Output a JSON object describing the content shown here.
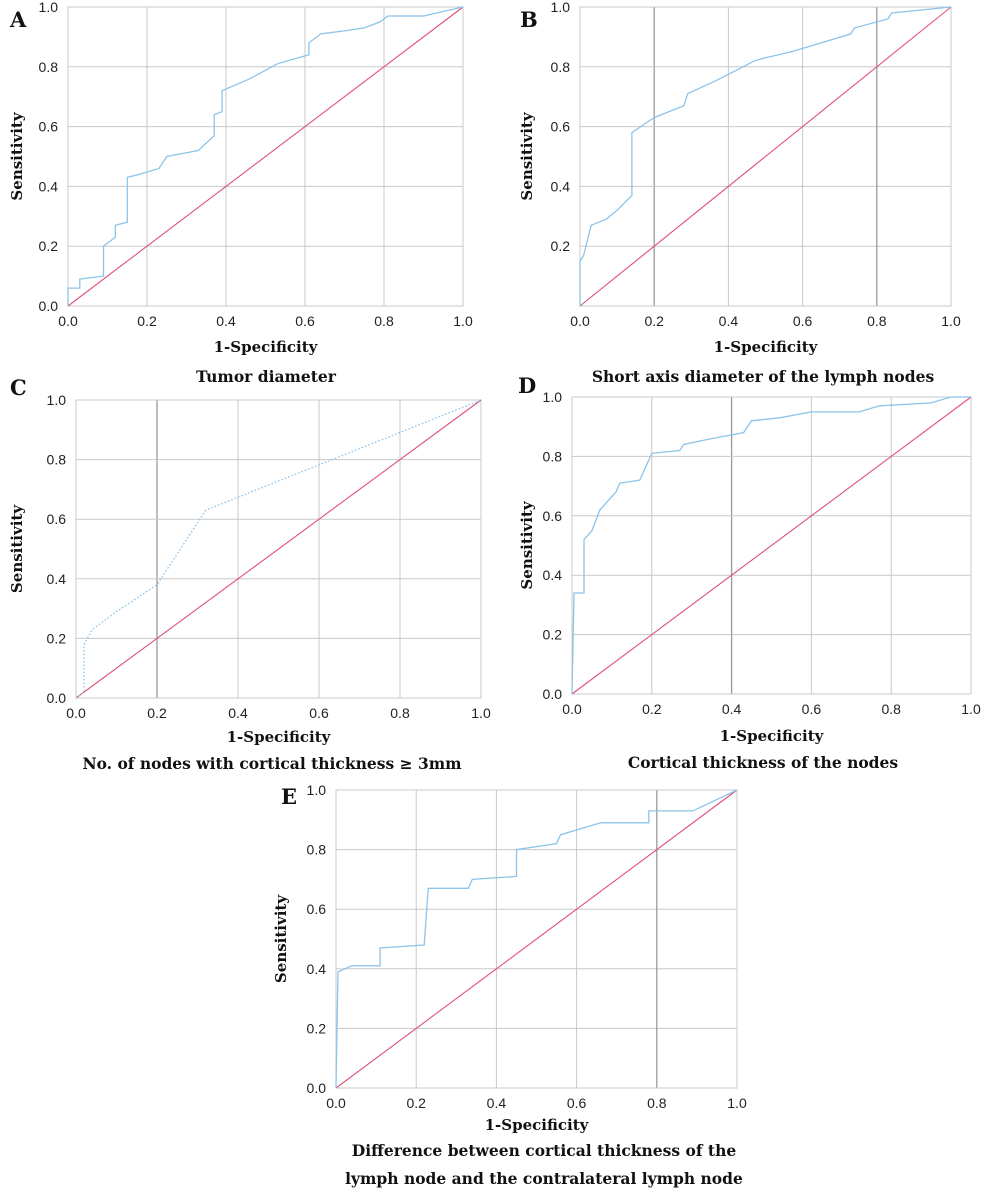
{
  "colors": {
    "roc_line": "#8cc4ea",
    "reference_line": "#e0507a",
    "grid": "#c8c8c8",
    "grid_emphasis": "#9a9a9a"
  },
  "chart_data": [
    {
      "type": "line",
      "panel": "A",
      "caption_lines": [
        "Tumor diameter"
      ],
      "xlabel": "1-Specificity",
      "ylabel": "Sensitivity",
      "xlim": [
        0,
        1
      ],
      "ylim": [
        0,
        1
      ],
      "xticks": [
        "0.0",
        "0.2",
        "0.4",
        "0.6",
        "0.8",
        "1.0"
      ],
      "yticks": [
        "0.0",
        "0.2",
        "0.4",
        "0.6",
        "0.8",
        "1.0"
      ],
      "grid": true,
      "emphasized_gridlines": [],
      "series": [
        {
          "role": "roc",
          "style": "solid",
          "points": [
            [
              0,
              0
            ],
            [
              0,
              0.06
            ],
            [
              0.03,
              0.06
            ],
            [
              0.03,
              0.09
            ],
            [
              0.09,
              0.1
            ],
            [
              0.09,
              0.2
            ],
            [
              0.12,
              0.23
            ],
            [
              0.12,
              0.27
            ],
            [
              0.15,
              0.28
            ],
            [
              0.15,
              0.43
            ],
            [
              0.18,
              0.44
            ],
            [
              0.23,
              0.46
            ],
            [
              0.25,
              0.5
            ],
            [
              0.33,
              0.52
            ],
            [
              0.37,
              0.57
            ],
            [
              0.37,
              0.64
            ],
            [
              0.39,
              0.65
            ],
            [
              0.39,
              0.72
            ],
            [
              0.46,
              0.76
            ],
            [
              0.53,
              0.81
            ],
            [
              0.61,
              0.84
            ],
            [
              0.61,
              0.88
            ],
            [
              0.64,
              0.91
            ],
            [
              0.7,
              0.92
            ],
            [
              0.75,
              0.93
            ],
            [
              0.79,
              0.95
            ],
            [
              0.81,
              0.97
            ],
            [
              0.9,
              0.97
            ],
            [
              1,
              1
            ]
          ]
        },
        {
          "role": "reference",
          "points": [
            [
              0,
              0
            ],
            [
              1,
              1
            ]
          ]
        }
      ]
    },
    {
      "type": "line",
      "panel": "B",
      "caption_lines": [
        "Short axis diameter of the lymph nodes"
      ],
      "xlabel": "1-Specificity",
      "ylabel": "Sensitivity",
      "xlim": [
        0,
        1
      ],
      "ylim": [
        0,
        1
      ],
      "xticks": [
        "0.0",
        "0.2",
        "0.4",
        "0.6",
        "0.8",
        "1.0"
      ],
      "yticks": [
        "0.2",
        "0.4",
        "0.6",
        "0.8",
        "1.0"
      ],
      "grid": true,
      "emphasized_gridlines": [
        "x:0.2",
        "x:0.8"
      ],
      "series": [
        {
          "role": "roc",
          "style": "solid",
          "points": [
            [
              0,
              0
            ],
            [
              0,
              0.15
            ],
            [
              0.01,
              0.17
            ],
            [
              0.02,
              0.22
            ],
            [
              0.03,
              0.27
            ],
            [
              0.05,
              0.28
            ],
            [
              0.07,
              0.29
            ],
            [
              0.1,
              0.32
            ],
            [
              0.14,
              0.37
            ],
            [
              0.14,
              0.58
            ],
            [
              0.2,
              0.63
            ],
            [
              0.28,
              0.67
            ],
            [
              0.29,
              0.71
            ],
            [
              0.36,
              0.75
            ],
            [
              0.44,
              0.8
            ],
            [
              0.47,
              0.82
            ],
            [
              0.5,
              0.83
            ],
            [
              0.57,
              0.85
            ],
            [
              0.65,
              0.88
            ],
            [
              0.73,
              0.91
            ],
            [
              0.74,
              0.93
            ],
            [
              0.83,
              0.96
            ],
            [
              0.84,
              0.98
            ],
            [
              0.92,
              0.99
            ],
            [
              1,
              1
            ]
          ]
        },
        {
          "role": "reference",
          "points": [
            [
              0,
              0
            ],
            [
              1,
              1
            ]
          ]
        }
      ]
    },
    {
      "type": "line",
      "panel": "C",
      "caption_lines": [
        "No. of nodes with cortical thickness ≥ 3mm"
      ],
      "xlabel": "1-Specificity",
      "ylabel": "Sensitivity",
      "xlim": [
        0,
        1
      ],
      "ylim": [
        0,
        1
      ],
      "xticks": [
        "0.0",
        "0.2",
        "0.4",
        "0.6",
        "0.8",
        "1.0"
      ],
      "yticks": [
        "0.0",
        "0.2",
        "0.4",
        "0.6",
        "0.8",
        "1.0"
      ],
      "grid": true,
      "emphasized_gridlines": [
        "x:0.2"
      ],
      "series": [
        {
          "role": "roc",
          "style": "dotted",
          "points": [
            [
              0,
              0
            ],
            [
              0.02,
              0.02
            ],
            [
              0.02,
              0.18
            ],
            [
              0.04,
              0.23
            ],
            [
              0.1,
              0.29
            ],
            [
              0.2,
              0.38
            ],
            [
              0.32,
              0.63
            ],
            [
              1,
              1
            ]
          ]
        },
        {
          "role": "reference",
          "points": [
            [
              0,
              0
            ],
            [
              1,
              1
            ]
          ]
        }
      ]
    },
    {
      "type": "line",
      "panel": "D",
      "caption_lines": [
        "Cortical thickness of the nodes"
      ],
      "xlabel": "1-Specificity",
      "ylabel": "Sensitivity",
      "xlim": [
        0,
        1
      ],
      "ylim": [
        0,
        1
      ],
      "xticks": [
        "0.0",
        "0.2",
        "0.4",
        "0.6",
        "0.8",
        "1.0"
      ],
      "yticks": [
        "0.0",
        "0.2",
        "0.4",
        "0.6",
        "0.8",
        "1.0"
      ],
      "grid": true,
      "emphasized_gridlines": [
        "x:0.4"
      ],
      "series": [
        {
          "role": "roc",
          "style": "solid",
          "points": [
            [
              0,
              0
            ],
            [
              0.005,
              0.34
            ],
            [
              0.03,
              0.34
            ],
            [
              0.03,
              0.52
            ],
            [
              0.05,
              0.55
            ],
            [
              0.07,
              0.62
            ],
            [
              0.09,
              0.65
            ],
            [
              0.11,
              0.68
            ],
            [
              0.12,
              0.71
            ],
            [
              0.17,
              0.72
            ],
            [
              0.2,
              0.81
            ],
            [
              0.27,
              0.82
            ],
            [
              0.28,
              0.84
            ],
            [
              0.35,
              0.86
            ],
            [
              0.43,
              0.88
            ],
            [
              0.45,
              0.92
            ],
            [
              0.52,
              0.93
            ],
            [
              0.6,
              0.95
            ],
            [
              0.72,
              0.95
            ],
            [
              0.77,
              0.97
            ],
            [
              0.9,
              0.98
            ],
            [
              0.95,
              1.0
            ],
            [
              1,
              1
            ]
          ]
        },
        {
          "role": "reference",
          "points": [
            [
              0,
              0
            ],
            [
              1,
              1
            ]
          ]
        }
      ]
    },
    {
      "type": "line",
      "panel": "E",
      "caption_lines": [
        "Difference between cortical thickness of the",
        "lymph node and the contralateral lymph node"
      ],
      "xlabel": "1-Specificity",
      "ylabel": "Sensitivity",
      "xlim": [
        0,
        1
      ],
      "ylim": [
        0,
        1
      ],
      "xticks": [
        "0.0",
        "0.2",
        "0.4",
        "0.6",
        "0.8",
        "1.0"
      ],
      "yticks": [
        "0.0",
        "0.2",
        "0.4",
        "0.6",
        "0.8",
        "1.0"
      ],
      "grid": true,
      "emphasized_gridlines": [
        "x:0.8"
      ],
      "series": [
        {
          "role": "roc",
          "style": "solid",
          "points": [
            [
              0,
              0
            ],
            [
              0.005,
              0.39
            ],
            [
              0.04,
              0.41
            ],
            [
              0.11,
              0.41
            ],
            [
              0.11,
              0.47
            ],
            [
              0.22,
              0.48
            ],
            [
              0.23,
              0.67
            ],
            [
              0.33,
              0.67
            ],
            [
              0.34,
              0.7
            ],
            [
              0.45,
              0.71
            ],
            [
              0.45,
              0.8
            ],
            [
              0.55,
              0.82
            ],
            [
              0.56,
              0.85
            ],
            [
              0.66,
              0.89
            ],
            [
              0.78,
              0.89
            ],
            [
              0.78,
              0.93
            ],
            [
              0.89,
              0.93
            ],
            [
              1,
              1
            ]
          ]
        },
        {
          "role": "reference",
          "points": [
            [
              0,
              0
            ],
            [
              1,
              1
            ]
          ]
        }
      ]
    }
  ]
}
